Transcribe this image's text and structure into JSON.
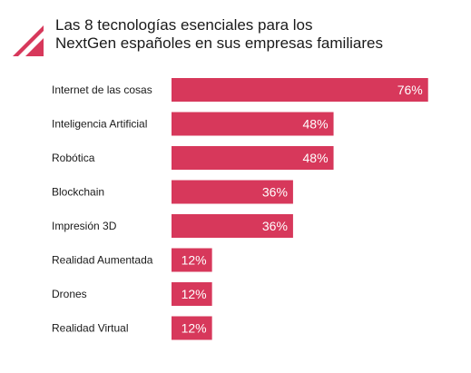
{
  "header": {
    "title_line1": "Las 8 tecnologías esenciales para los",
    "title_line2": "NextGen españoles en sus empresas familiares",
    "logo_icon": "brand-triangle-logo-icon"
  },
  "colors": {
    "bar": "#d7385b",
    "logo": "#d7385b",
    "text": "#1a1a1a",
    "value_text": "#ffffff"
  },
  "chart_data": {
    "type": "bar",
    "orientation": "horizontal",
    "title": "Las 8 tecnologías esenciales para los NextGen españoles en sus empresas familiares",
    "categories": [
      "Internet de las cosas",
      "Inteligencia Artificial",
      "Robótica",
      "Blockchain",
      "Impresión 3D",
      "Realidad Aumentada",
      "Drones",
      "Realidad Virtual"
    ],
    "values": [
      76,
      48,
      48,
      36,
      36,
      12,
      12,
      12
    ],
    "value_labels": [
      "76%",
      "48%",
      "48%",
      "36%",
      "36%",
      "12%",
      "12%",
      "12%"
    ],
    "xlim": [
      0,
      100
    ],
    "grid": false,
    "legend": "none",
    "xlabel": "",
    "ylabel": ""
  }
}
